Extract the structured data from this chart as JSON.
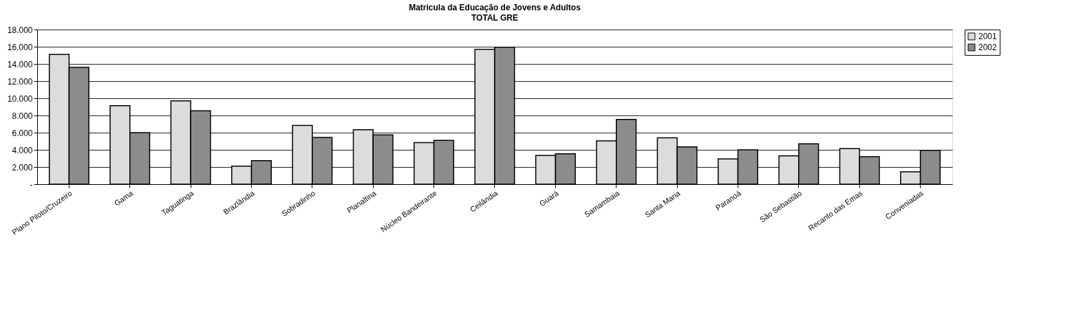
{
  "chart_data": {
    "type": "bar",
    "title": "Matricula da Educação de Jovens e Adultos",
    "subtitle": "TOTAL GRE",
    "categories": [
      "Plano Piloto/Cruzeiro",
      "Gama",
      "Taguatinga",
      "Brazlândia",
      "Sobradinho",
      "Planaltina",
      "Núcleo Bandeirante",
      "Ceilândia",
      "Guará",
      "Samambaia",
      "Santa Maria",
      "Paranoá",
      "São Sebastião",
      "Recanto das Emas",
      "Conveniadas"
    ],
    "series": [
      {
        "name": "2001",
        "color": "#dcdcdc",
        "values": [
          15100,
          9150,
          9700,
          2100,
          6850,
          6350,
          4850,
          15700,
          3350,
          5050,
          5400,
          2950,
          3300,
          4150,
          1450
        ]
      },
      {
        "name": "2002",
        "color": "#8c8c8c",
        "values": [
          13600,
          6000,
          8550,
          2750,
          5450,
          5750,
          5100,
          15950,
          3550,
          7550,
          4350,
          4000,
          4700,
          3200,
          3950
        ]
      }
    ],
    "ylim": [
      0,
      18000
    ],
    "yticks": [
      {
        "value": 0,
        "label": "-"
      },
      {
        "value": 2000,
        "label": "2.000"
      },
      {
        "value": 4000,
        "label": "4.000"
      },
      {
        "value": 6000,
        "label": "6.000"
      },
      {
        "value": 8000,
        "label": "8.000"
      },
      {
        "value": 10000,
        "label": "10.000"
      },
      {
        "value": 12000,
        "label": "12.000"
      },
      {
        "value": 14000,
        "label": "14.000"
      },
      {
        "value": 16000,
        "label": "16.000"
      },
      {
        "value": 18000,
        "label": "18.000"
      }
    ],
    "grid": "y",
    "legend": "right"
  }
}
